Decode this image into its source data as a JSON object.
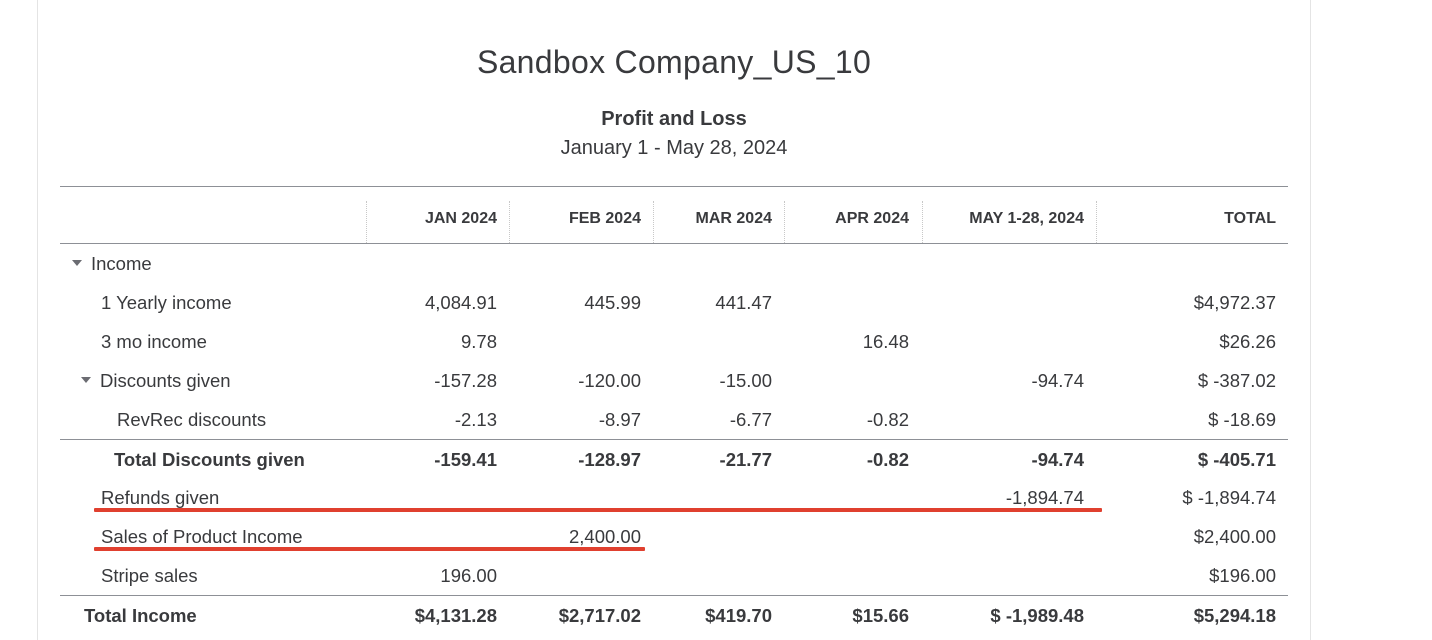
{
  "report": {
    "company": "Sandbox Company_US_10",
    "title": "Profit and Loss",
    "dates": "January 1 - May 28, 2024"
  },
  "columns": [
    "JAN 2024",
    "FEB 2024",
    "MAR 2024",
    "APR 2024",
    "MAY 1-28, 2024",
    "TOTAL"
  ],
  "rows": [
    {
      "label": "Income",
      "values": [
        "",
        "",
        "",
        "",
        "",
        ""
      ]
    },
    {
      "label": "1 Yearly income",
      "values": [
        "4,084.91",
        "445.99",
        "441.47",
        "",
        "",
        "$4,972.37"
      ]
    },
    {
      "label": "3 mo income",
      "values": [
        "9.78",
        "",
        "",
        "16.48",
        "",
        "$26.26"
      ]
    },
    {
      "label": "Discounts given",
      "values": [
        "-157.28",
        "-120.00",
        "-15.00",
        "",
        "-94.74",
        "$ -387.02"
      ]
    },
    {
      "label": "RevRec discounts",
      "values": [
        "-2.13",
        "-8.97",
        "-6.77",
        "-0.82",
        "",
        "$ -18.69"
      ]
    },
    {
      "label": "Total Discounts given",
      "values": [
        "-159.41",
        "-128.97",
        "-21.77",
        "-0.82",
        "-94.74",
        "$ -405.71"
      ]
    },
    {
      "label": "Refunds given",
      "values": [
        "",
        "",
        "",
        "",
        "-1,894.74",
        "$ -1,894.74"
      ]
    },
    {
      "label": "Sales of Product Income",
      "values": [
        "",
        "2,400.00",
        "",
        "",
        "",
        "$2,400.00"
      ]
    },
    {
      "label": "Stripe sales",
      "values": [
        "196.00",
        "",
        "",
        "",
        "",
        "$196.00"
      ]
    },
    {
      "label": "Total Income",
      "values": [
        "$4,131.28",
        "$2,717.02",
        "$419.70",
        "$15.66",
        "$ -1,989.48",
        "$5,294.18"
      ]
    }
  ],
  "annotations": {
    "highlight_color": "#e0402f"
  }
}
